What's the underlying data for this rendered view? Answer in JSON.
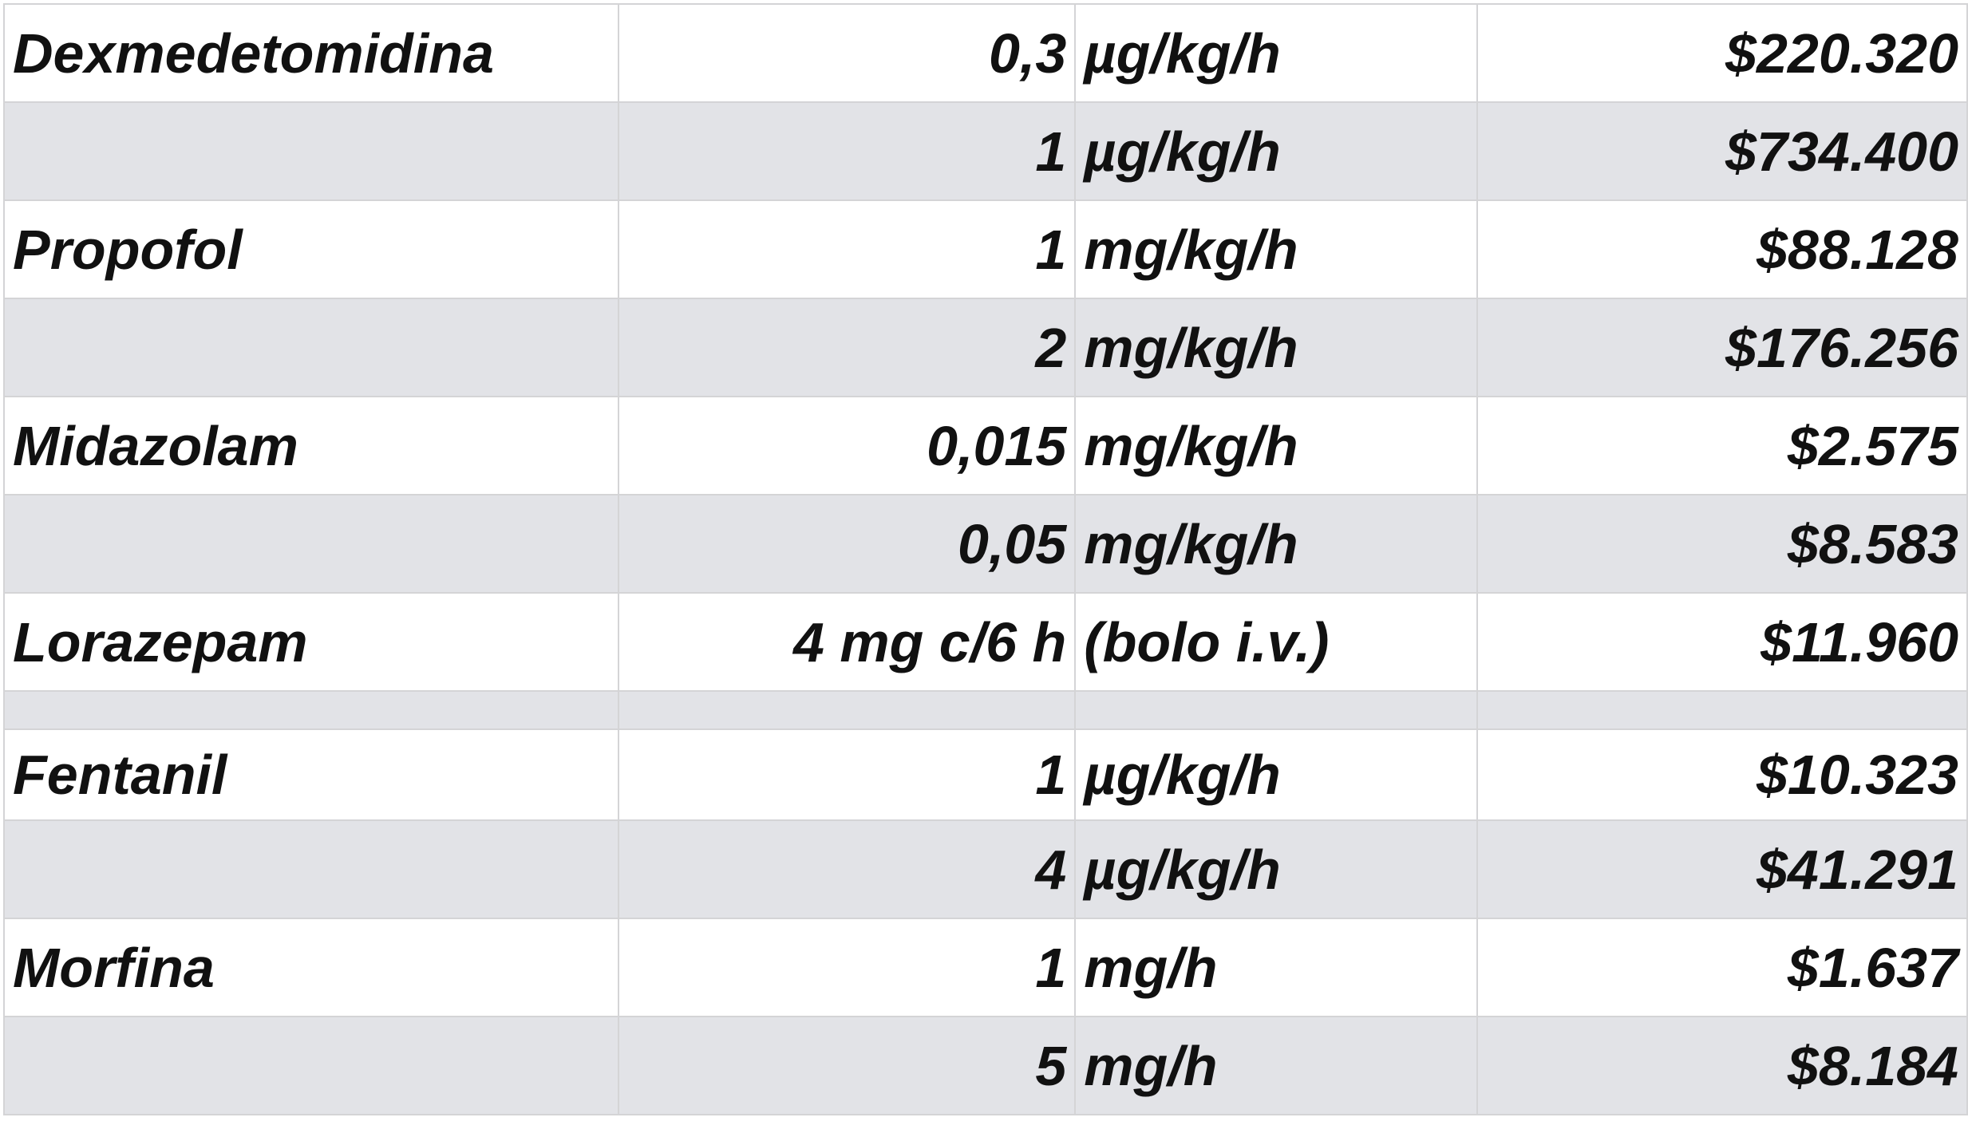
{
  "table": {
    "rows": [
      {
        "drug": "Dexmedetomidina",
        "dose": "0,3",
        "unit": "µg/kg/h",
        "cost": "$220.320"
      },
      {
        "dose": "1",
        "unit": "µg/kg/h",
        "cost": "$734.400"
      },
      {
        "drug": "Propofol",
        "dose": "1",
        "unit": "mg/kg/h",
        "cost": "$88.128"
      },
      {
        "dose": "2",
        "unit": "mg/kg/h",
        "cost": "$176.256"
      },
      {
        "drug": "Midazolam",
        "dose": "0,015",
        "unit": "mg/kg/h",
        "cost": "$2.575"
      },
      {
        "dose": "0,05",
        "unit": "mg/kg/h",
        "cost": "$8.583"
      },
      {
        "drug": "Lorazepam",
        "dose": "4 mg c/6 h",
        "unit": "(bolo i.v.)",
        "cost": "$11.960"
      },
      {},
      {
        "drug": "Fentanil",
        "dose": "1",
        "unit": "µg/kg/h",
        "cost": "$10.323"
      },
      {
        "dose": "4",
        "unit": "µg/kg/h",
        "cost": "$41.291"
      },
      {
        "drug": "Morfina",
        "dose": "1",
        "unit": "mg/h",
        "cost": "$1.637"
      },
      {
        "dose": "5",
        "unit": "mg/h",
        "cost": "$8.184"
      }
    ]
  }
}
